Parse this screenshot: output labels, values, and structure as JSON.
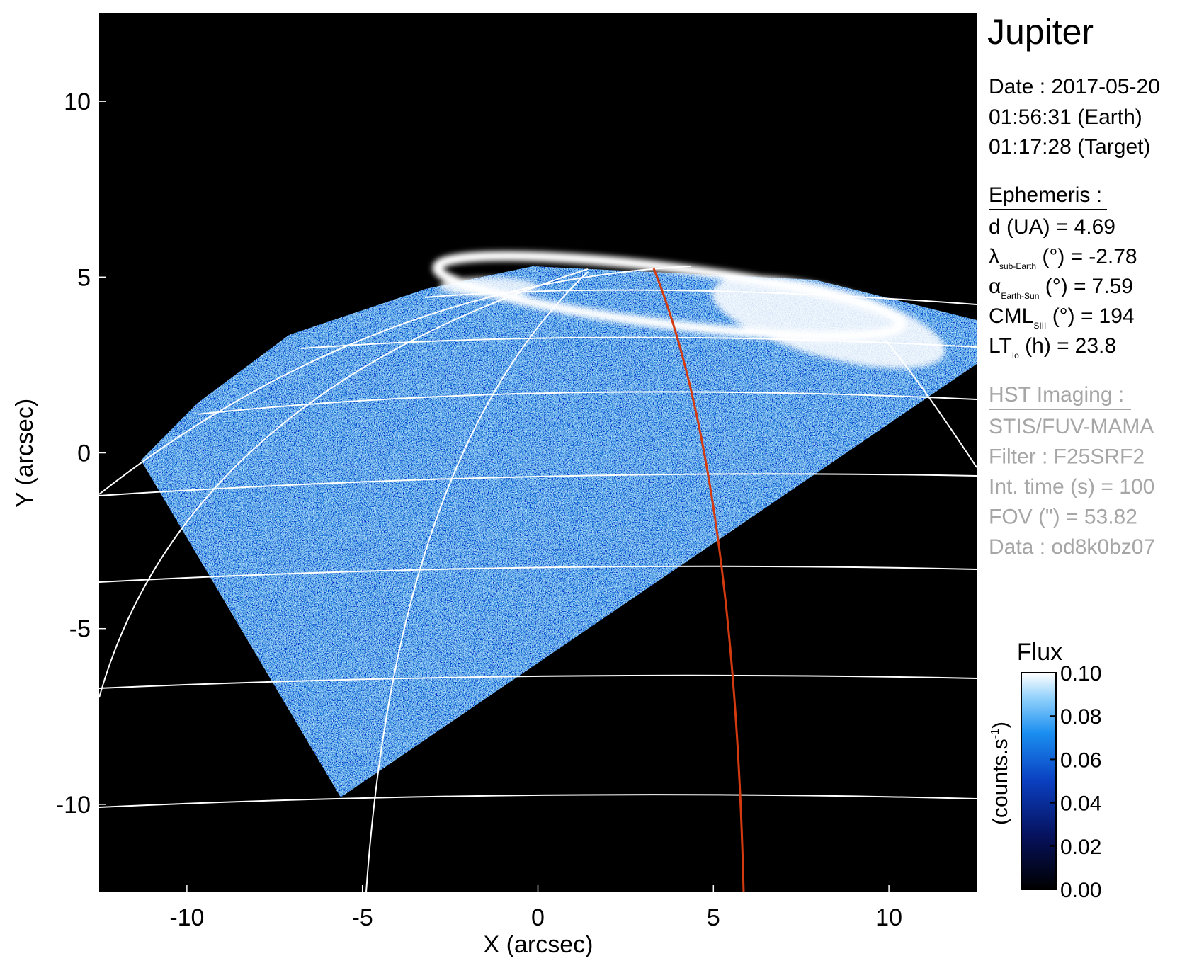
{
  "chart_data": {
    "type": "image",
    "xlabel": "X (arcsec)",
    "ylabel": "Y (arcsec)",
    "xlim": [
      -12.5,
      12.5
    ],
    "ylim": [
      -12.5,
      12.5
    ],
    "xticks": [
      -10,
      -5,
      0,
      5,
      10
    ],
    "yticks": [
      -10,
      -5,
      0,
      5,
      10
    ],
    "colorbar": {
      "title": "Flux",
      "label": "(counts.s",
      "label_superscript": "-1",
      "label_end": ")",
      "clim": [
        0,
        0.1
      ],
      "ticks": [
        {
          "value": 0,
          "label": "0.00"
        },
        {
          "value": 0.02,
          "label": "0.02"
        },
        {
          "value": 0.04,
          "label": "0.04"
        },
        {
          "value": 0.06,
          "label": "0.06"
        },
        {
          "value": 0.08,
          "label": "0.08"
        },
        {
          "value": 0.1,
          "label": "0.10"
        }
      ]
    },
    "info": {
      "target": "Jupiter",
      "date_lines": [
        "Date : 2017-05-20",
        "01:56:31 (Earth)",
        "01:17:28 (Target)"
      ],
      "ephemeris_title": "Ephemeris :",
      "ephemeris": [
        {
          "label": "d (UA)",
          "rest": " =",
          "value": 4.69
        },
        {
          "label": "λ",
          "sub": "sub-Earth",
          "rest": " (°) =",
          "value": -2.78
        },
        {
          "label": "α",
          "sub": "Earth-Sun",
          "rest": " (°) =",
          "value": 7.59
        },
        {
          "label": "CML",
          "sub": "SIII",
          "rest": " (°) =",
          "value": 194
        },
        {
          "label": "LT",
          "sub": "Io",
          "rest": " (h) =",
          "value": 23.8
        }
      ],
      "imaging_title": "HST Imaging :",
      "imaging": [
        "STIS/FUV-MAMA",
        "Filter : F25SRF2",
        "Int. time (s) = 100",
        "FOV (\") = 53.82",
        "Data : od8k0bz07"
      ]
    }
  }
}
